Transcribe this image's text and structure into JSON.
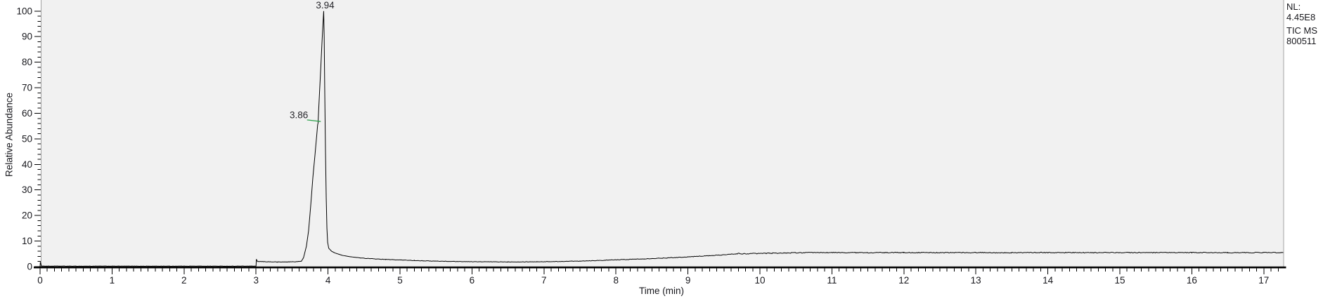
{
  "chart_data": {
    "type": "line",
    "title": "",
    "xlabel": "Time (min)",
    "ylabel": "Relative Abundance",
    "xlim": [
      0,
      17.27
    ],
    "ylim": [
      0,
      104.5
    ],
    "x_ticks": [
      0,
      1,
      2,
      3,
      4,
      5,
      6,
      7,
      8,
      9,
      10,
      11,
      12,
      13,
      14,
      15,
      16,
      17
    ],
    "x_minor_step": 0.1,
    "y_ticks": [
      0,
      10,
      20,
      30,
      40,
      50,
      60,
      70,
      80,
      90,
      100
    ],
    "y_minor_step": 2,
    "grid": false,
    "colors": {
      "trace": "#000000",
      "plot_background": "#f1f1f1",
      "frame_border": "#a3a3a3",
      "axis": "#000000",
      "tick_label": "#17171c",
      "peak_leader_green": "#2fa14d"
    },
    "series": [
      {
        "name": "TIC",
        "points": [
          [
            0,
            0
          ],
          [
            0.004,
            1.8
          ],
          [
            0.02,
            0.2
          ],
          [
            0.5,
            0.18
          ],
          [
            1.0,
            0.2
          ],
          [
            1.5,
            0.18
          ],
          [
            2.0,
            0.2
          ],
          [
            2.5,
            0.18
          ],
          [
            2.99,
            0.2
          ],
          [
            3.0,
            0.2
          ],
          [
            3.005,
            2.9
          ],
          [
            3.02,
            2.0
          ],
          [
            3.1,
            1.95
          ],
          [
            3.3,
            1.8
          ],
          [
            3.45,
            1.85
          ],
          [
            3.58,
            1.95
          ],
          [
            3.63,
            2.1
          ],
          [
            3.66,
            3.5
          ],
          [
            3.7,
            8
          ],
          [
            3.73,
            14
          ],
          [
            3.76,
            24
          ],
          [
            3.79,
            35
          ],
          [
            3.82,
            44
          ],
          [
            3.845,
            52
          ],
          [
            3.856,
            55.5
          ],
          [
            3.862,
            56.2
          ],
          [
            3.868,
            60
          ],
          [
            3.88,
            67
          ],
          [
            3.9,
            78
          ],
          [
            3.915,
            87
          ],
          [
            3.93,
            95
          ],
          [
            3.94,
            100
          ],
          [
            3.947,
            90
          ],
          [
            3.955,
            68
          ],
          [
            3.965,
            45
          ],
          [
            3.975,
            27
          ],
          [
            3.985,
            15
          ],
          [
            3.995,
            9.5
          ],
          [
            4.01,
            7.2
          ],
          [
            4.05,
            6.0
          ],
          [
            4.1,
            5.3
          ],
          [
            4.2,
            4.4
          ],
          [
            4.3,
            3.9
          ],
          [
            4.45,
            3.4
          ],
          [
            4.6,
            3.1
          ],
          [
            4.8,
            2.8
          ],
          [
            5.0,
            2.6
          ],
          [
            5.2,
            2.4
          ],
          [
            5.5,
            2.15
          ],
          [
            5.8,
            2.0
          ],
          [
            6.1,
            1.9
          ],
          [
            6.5,
            1.85
          ],
          [
            6.9,
            1.9
          ],
          [
            7.2,
            2.0
          ],
          [
            7.5,
            2.2
          ],
          [
            7.8,
            2.45
          ],
          [
            8.1,
            2.75
          ],
          [
            8.4,
            3.05
          ],
          [
            8.7,
            3.4
          ],
          [
            9.0,
            3.8
          ],
          [
            9.3,
            4.3
          ],
          [
            9.55,
            4.7
          ],
          [
            9.65,
            4.95
          ],
          [
            9.7,
            5.15
          ],
          [
            9.75,
            5.0
          ],
          [
            9.9,
            5.1
          ],
          [
            10.1,
            5.2
          ],
          [
            10.35,
            5.35
          ],
          [
            10.6,
            5.45
          ],
          [
            11.0,
            5.5
          ],
          [
            11.5,
            5.45
          ],
          [
            12.0,
            5.5
          ],
          [
            12.5,
            5.45
          ],
          [
            13.0,
            5.5
          ],
          [
            13.5,
            5.45
          ],
          [
            14.0,
            5.5
          ],
          [
            14.5,
            5.45
          ],
          [
            15.0,
            5.5
          ],
          [
            15.5,
            5.45
          ],
          [
            16.0,
            5.5
          ],
          [
            16.5,
            5.45
          ],
          [
            17.0,
            5.5
          ],
          [
            17.27,
            5.5
          ]
        ]
      }
    ],
    "baseline_noise_regions": [
      {
        "from": 0.05,
        "to": 2.97,
        "amp": 0.05
      },
      {
        "from": 3.03,
        "to": 3.6,
        "amp": 0.09
      },
      {
        "from": 4.4,
        "to": 7.4,
        "amp": 0.08
      },
      {
        "from": 7.4,
        "to": 9.5,
        "amp": 0.1
      },
      {
        "from": 9.5,
        "to": 17.26,
        "amp": 0.16
      }
    ],
    "peaks": [
      {
        "label": "3.94",
        "time": 3.94,
        "value": 100,
        "type": "apex"
      },
      {
        "label": "3.86",
        "time": 3.86,
        "value": 57,
        "type": "shoulder"
      }
    ],
    "scale_annotation": {
      "lines": [
        "NL:",
        "4.45E8",
        "TIC  MS",
        "800511"
      ]
    }
  }
}
